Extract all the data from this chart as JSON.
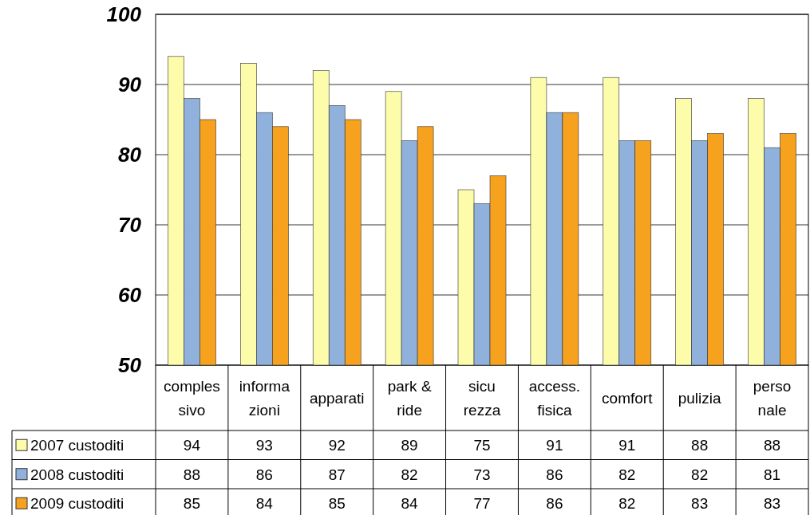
{
  "chart_data": {
    "type": "bar",
    "categories": [
      "comples\nsivo",
      "informa\nzioni",
      "apparati",
      "park &\nride",
      "sicu\nrezza",
      "access.\nfisica",
      "comfort",
      "pulizia",
      "perso\nnale"
    ],
    "series": [
      {
        "name": "2007 custoditi",
        "color": "#fcfcaa",
        "values": [
          94,
          93,
          92,
          89,
          75,
          91,
          91,
          88,
          88
        ]
      },
      {
        "name": "2008 custoditi",
        "color": "#8fb1dc",
        "values": [
          88,
          86,
          87,
          82,
          73,
          86,
          82,
          82,
          81
        ]
      },
      {
        "name": "2009 custoditi",
        "color": "#f6a21e",
        "values": [
          85,
          84,
          85,
          84,
          77,
          86,
          82,
          83,
          83
        ]
      }
    ],
    "ylim": [
      50,
      100
    ],
    "yticks": [
      50,
      60,
      70,
      80,
      90,
      100
    ],
    "grid": "y",
    "legend": "bottom",
    "data_labels": true
  }
}
